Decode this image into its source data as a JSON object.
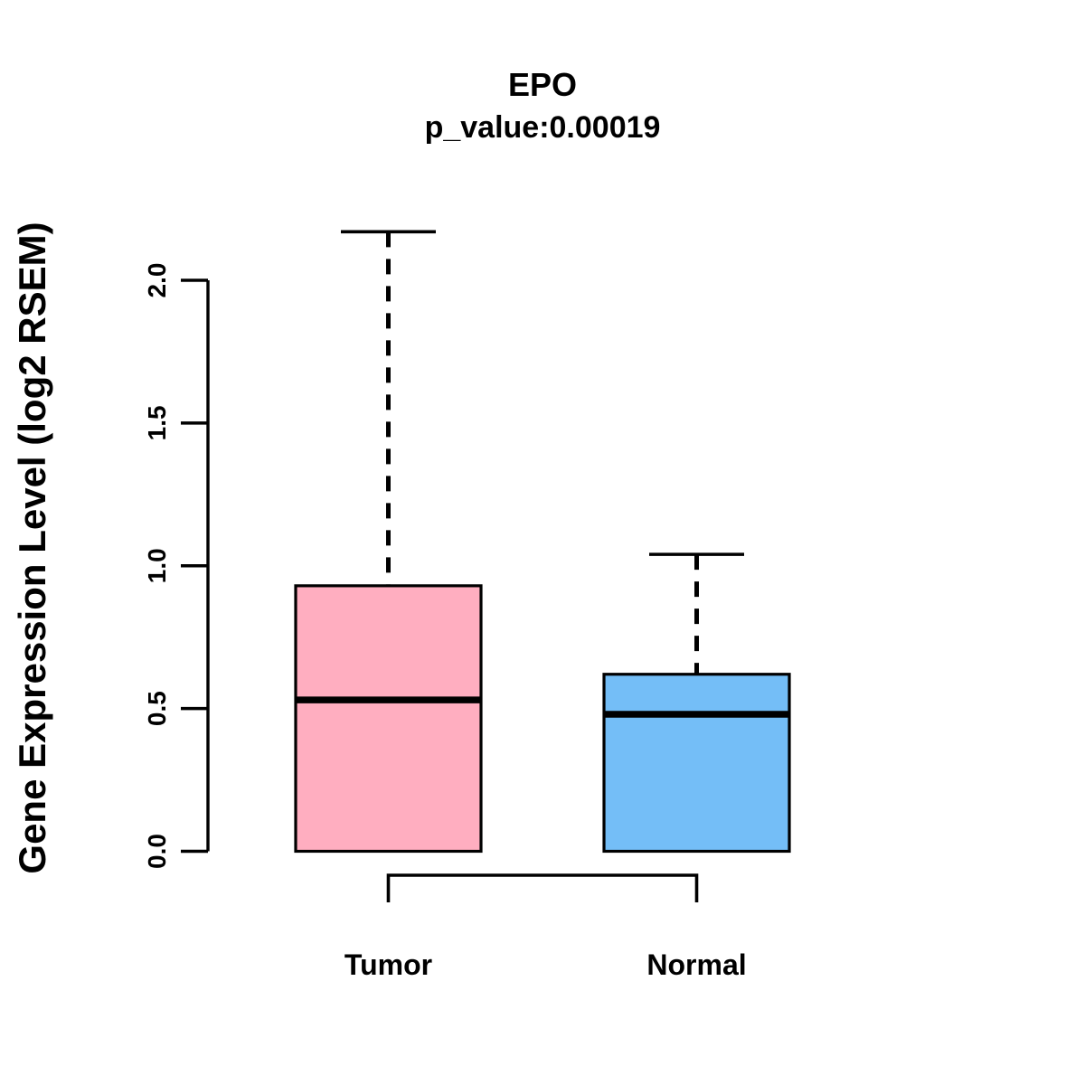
{
  "chart_data": {
    "type": "boxplot",
    "title": "EPO",
    "subtitle": "p_value:0.00019",
    "ylabel": "Gene Expression Level (log2 RSEM)",
    "xlabel": "",
    "ylim": [
      0,
      2.2
    ],
    "yticks": [
      0,
      0.5,
      1,
      1.5,
      2
    ],
    "ytick_labels": [
      "0.0",
      "0.5",
      "1.0",
      "1.5",
      "2.0"
    ],
    "categories": [
      "Tumor",
      "Normal"
    ],
    "series": [
      {
        "name": "Tumor",
        "fill_color": "#FFAEC0",
        "min": 0,
        "q1": 0,
        "median": 0.53,
        "q3": 0.93,
        "max": 2.17
      },
      {
        "name": "Normal",
        "fill_color": "#74BEF7",
        "min": 0,
        "q1": 0,
        "median": 0.48,
        "q3": 0.62,
        "max": 1.04
      }
    ],
    "significance_bracket": {
      "between": [
        "Tumor",
        "Normal"
      ],
      "p_value": "0.00019"
    },
    "grid": "off",
    "legend": "none",
    "colors": {
      "stroke": "#000000",
      "background": "#FFFFFF"
    }
  }
}
